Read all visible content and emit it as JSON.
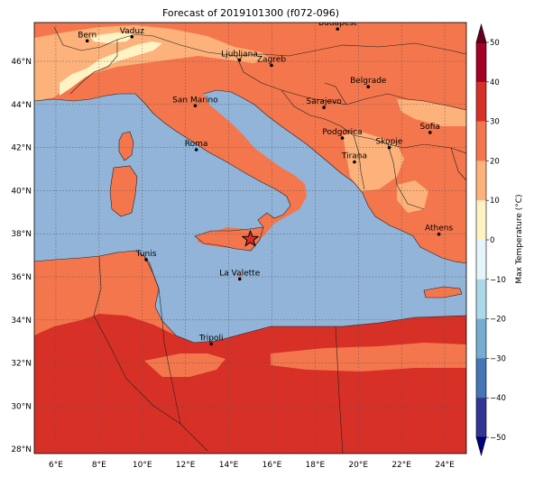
{
  "title": "Forecast of 2019101300 (f072-096)",
  "colors": {
    "sea": "#91b4d8",
    "band_20_30": "#f4764c",
    "band_30_40": "#d73027",
    "band_10_20": "#fcb27a",
    "band_0_10": "#fff3c4",
    "border": "#222222",
    "grid": "#555555"
  },
  "map": {
    "lon_range": [
      5,
      25
    ],
    "lat_range": [
      27.8,
      47.8
    ],
    "x_ticks": [
      "6°E",
      "8°E",
      "10°E",
      "12°E",
      "14°E",
      "16°E",
      "18°E",
      "20°E",
      "22°E",
      "24°E"
    ],
    "y_ticks": [
      "28°N",
      "30°N",
      "32°N",
      "34°N",
      "36°N",
      "38°N",
      "40°N",
      "42°N",
      "44°N",
      "46°N"
    ],
    "grid": true,
    "marker": {
      "symbol": "star",
      "lon": 15.0,
      "lat": 37.75
    },
    "cities": [
      {
        "name": "Bern",
        "lon": 7.45,
        "lat": 46.95
      },
      {
        "name": "Vaduz",
        "lon": 9.52,
        "lat": 47.14
      },
      {
        "name": "Budapest",
        "lon": 19.04,
        "lat": 47.5
      },
      {
        "name": "Ljubljana",
        "lon": 14.5,
        "lat": 46.06
      },
      {
        "name": "Zagreb",
        "lon": 15.98,
        "lat": 45.81
      },
      {
        "name": "Belgrade",
        "lon": 20.46,
        "lat": 44.82
      },
      {
        "name": "San Marino",
        "lon": 12.45,
        "lat": 43.94
      },
      {
        "name": "Sarajevo",
        "lon": 18.41,
        "lat": 43.86
      },
      {
        "name": "Sofia",
        "lon": 23.32,
        "lat": 42.7
      },
      {
        "name": "Podgorica",
        "lon": 19.26,
        "lat": 42.44
      },
      {
        "name": "Skopje",
        "lon": 21.43,
        "lat": 42.0
      },
      {
        "name": "Roma",
        "lon": 12.5,
        "lat": 41.9
      },
      {
        "name": "Tirana",
        "lon": 19.82,
        "lat": 41.33
      },
      {
        "name": "Athens",
        "lon": 23.73,
        "lat": 37.98
      },
      {
        "name": "Tunis",
        "lon": 10.18,
        "lat": 36.8
      },
      {
        "name": "La Valette",
        "lon": 14.51,
        "lat": 35.9
      },
      {
        "name": "Tripoli",
        "lon": 13.19,
        "lat": 32.89
      }
    ]
  },
  "colorbar": {
    "label": "Max Temperature (°C)",
    "ticks": [
      "50",
      "40",
      "30",
      "20",
      "10",
      "0",
      "−10",
      "−20",
      "−30",
      "−40",
      "−50"
    ],
    "colors": [
      "#a50026",
      "#d73027",
      "#f4764c",
      "#fcb27a",
      "#fff3c4",
      "#e6f5fa",
      "#abd9e9",
      "#74add1",
      "#4575b4",
      "#313695"
    ]
  }
}
